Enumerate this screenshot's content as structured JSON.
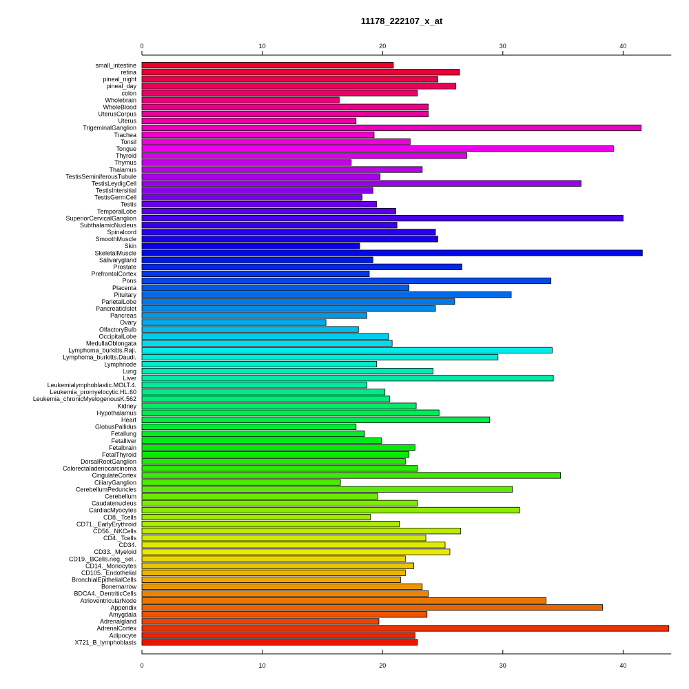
{
  "chart_data": {
    "type": "bar",
    "orientation": "horizontal",
    "title": "11178_222107_x_at",
    "xlabel": "",
    "ylabel": "",
    "xlim": [
      0,
      44
    ],
    "ticks": [
      0,
      10,
      20,
      30,
      40
    ],
    "tick_labels": [
      "0",
      "10",
      "20",
      "30",
      "40"
    ],
    "axes": [
      "top",
      "bottom"
    ],
    "grid": false,
    "legend": "none",
    "color_scheme": "rainbow",
    "categories": [
      "small_intestine",
      "retina",
      "pineal_night",
      "pineal_day",
      "colon",
      "Wholebrain",
      "WholeBlood",
      "UterusCorpus",
      "Uterus",
      "TrigeminalGanglion",
      "Trachea",
      "Tonsil",
      "Tongue",
      "Thyroid",
      "Thymus",
      "Thalamus",
      "TestisSeminiferousTubule",
      "TestisLeydigCell",
      "TestisIntersitial",
      "TestisGermCell",
      "Testis",
      "TemporalLobe",
      "SuperiorCervicalGanglion",
      "SubthalamicNucleus",
      "Spinalcord",
      "SmoothMuscle",
      "Skin",
      "SkeletalMuscle",
      "Salivarygland",
      "Prostate",
      "PrefrontalCortex",
      "Pons",
      "Placenta",
      "Pituitary",
      "ParietalLobe",
      "PancreaticIslet",
      "Pancreas",
      "Ovary",
      "OlfactoryBulb",
      "OccipitalLobe",
      "MedullaOblongata",
      "Lymphoma_burkitts.Raji.",
      "Lymphoma_burkitts.Daudi.",
      "Lymphnode",
      "Lung",
      "Liver",
      "Leukemialymphoblastic.MOLT.4.",
      "Leukemia_promyelocytic.HL.60",
      "Leukemia_chronicMyelogenousK.562",
      "Kidney",
      "Hypothalamus",
      "Heart",
      "GlobusPallidus",
      "Fetallung",
      "Fetalliver",
      "Fetalbrain",
      "FetalThyroid",
      "DorsalRootGanglion",
      "Colorectaladenocarcinoma",
      "CingulateCortex",
      "CiliaryGanglion",
      "CerebellumPeduncles",
      "Cerebellum",
      "Caudatenucleus",
      "CardiacMyocytes",
      "CD8._Tcells",
      "CD71._EarlyErythroid",
      "CD56._NKCells",
      "CD4._Tcells",
      "CD34.",
      "CD33._Myeloid",
      "CD19._BCells.neg._sel..",
      "CD14._Monocytes",
      "CD105._Endothelial",
      "BronchialEpithelialCells",
      "Bonemarrow",
      "BDCA4._DentriticCells",
      "AtrioventricularNode",
      "Appendix",
      "Amygdala",
      "Adrenalgland",
      "AdrenalCortex",
      "Adipocyte",
      "X721_B_lymphoblasts"
    ],
    "values": [
      20.9,
      26.4,
      24.6,
      26.1,
      22.9,
      16.4,
      23.8,
      23.8,
      17.8,
      41.5,
      19.3,
      22.3,
      39.2,
      27.0,
      17.4,
      23.3,
      19.8,
      36.5,
      19.2,
      18.3,
      19.5,
      21.1,
      40.0,
      21.2,
      24.4,
      24.6,
      18.1,
      41.6,
      19.2,
      26.6,
      18.9,
      34.0,
      22.2,
      30.7,
      26.0,
      24.4,
      18.7,
      15.3,
      18.0,
      20.5,
      20.8,
      34.1,
      29.6,
      19.5,
      24.2,
      34.2,
      18.7,
      20.2,
      20.6,
      22.8,
      24.7,
      28.9,
      17.8,
      18.5,
      19.9,
      22.7,
      22.2,
      21.9,
      22.9,
      34.8,
      16.5,
      30.8,
      19.6,
      22.9,
      31.4,
      19.0,
      21.4,
      26.5,
      23.6,
      25.2,
      25.6,
      21.9,
      22.6,
      21.9,
      21.5,
      23.3,
      23.8,
      33.6,
      38.3,
      23.7,
      19.7,
      43.8,
      22.7,
      22.9
    ]
  }
}
